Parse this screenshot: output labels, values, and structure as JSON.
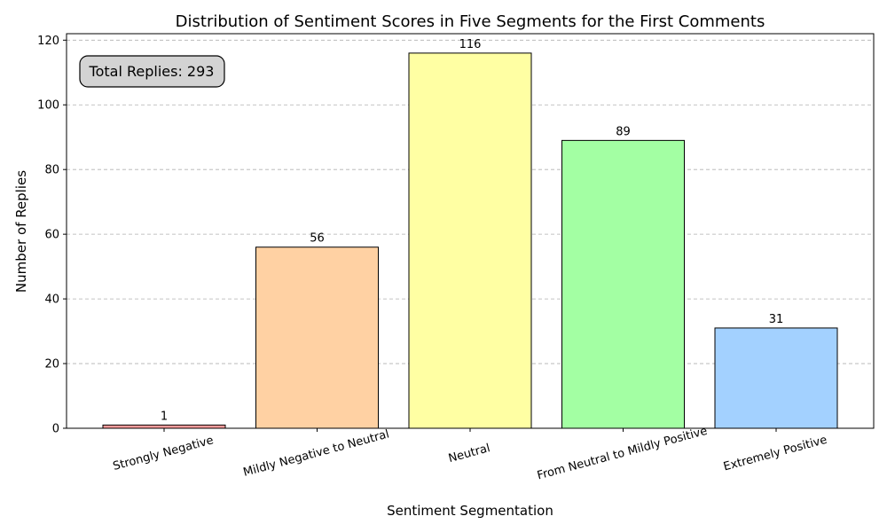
{
  "chart_data": {
    "type": "bar",
    "title": "Distribution of Sentiment Scores in Five Segments for the First Comments",
    "xlabel": "Sentiment Segmentation",
    "ylabel": "Number of Replies",
    "categories": [
      "Strongly Negative",
      "Mildly Negative to Neutral",
      "Neutral",
      "From Neutral to Mildly Positive",
      "Extremely Positive"
    ],
    "values": [
      1,
      56,
      116,
      89,
      31
    ],
    "colors": [
      "#ff9b9b",
      "#ffd1a3",
      "#ffffa3",
      "#a3ffa3",
      "#a3d1ff"
    ],
    "ylim": [
      0,
      122
    ],
    "yticks": [
      0,
      20,
      40,
      60,
      80,
      100,
      120
    ],
    "grid": "y-dashed",
    "annotation": "Total Replies: 293"
  }
}
